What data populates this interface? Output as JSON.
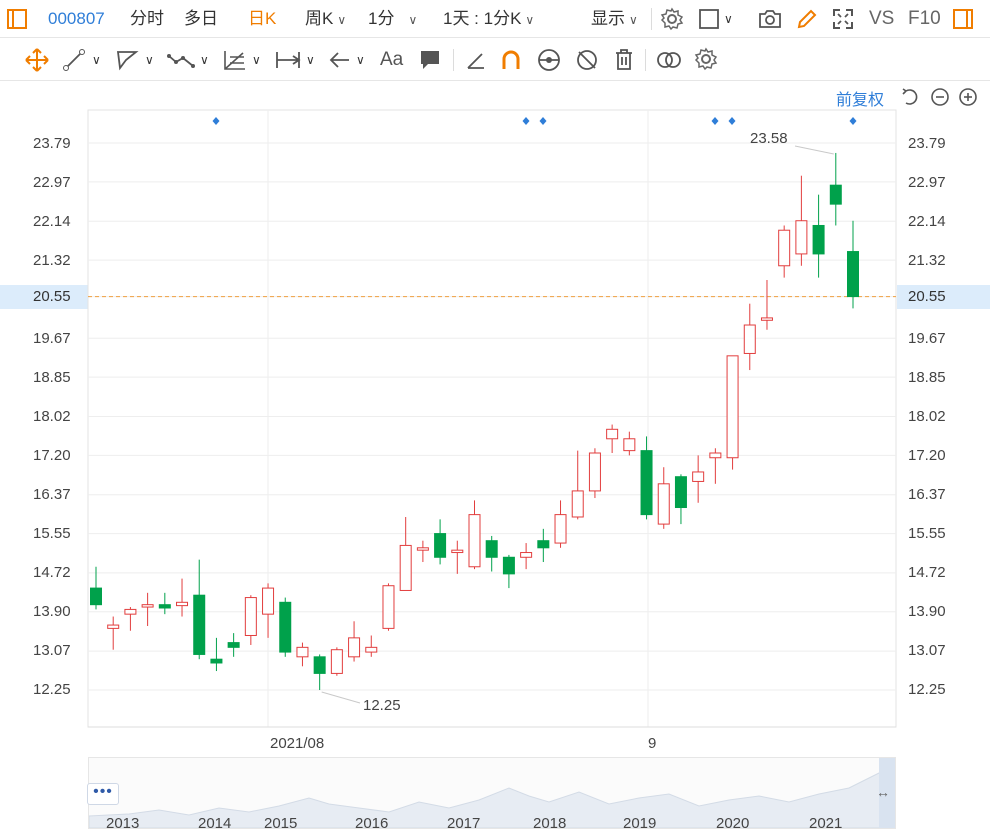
{
  "toolbar": {
    "code": "000807",
    "tabs": [
      "分时",
      "多日",
      "日K",
      "周K",
      "1分",
      "1天 : 1分K"
    ],
    "display_label": "显示",
    "vs_label": "VS",
    "f10_label": "F10"
  },
  "chart_toolbar": {
    "font_label": "Aa"
  },
  "chart": {
    "adjust_label": "前复权",
    "high_label": "23.58",
    "low_label": "12.25",
    "current_price": "20.55",
    "y_ticks": [
      "23.79",
      "22.97",
      "22.14",
      "21.32",
      "20.55",
      "19.67",
      "18.85",
      "18.02",
      "17.20",
      "16.37",
      "15.55",
      "14.72",
      "13.90",
      "13.07",
      "12.25"
    ],
    "x_labels": [
      "2021/08",
      "9"
    ],
    "navigator_years": [
      "2013",
      "2014",
      "2015",
      "2016",
      "2017",
      "2018",
      "2019",
      "2020",
      "2021"
    ],
    "colors": {
      "up": "#e23d3d",
      "down": "#00a14b",
      "accent": "#2f7ed8",
      "orange": "#f07d00"
    }
  },
  "chart_data": {
    "type": "candlestick",
    "ylim": [
      12.25,
      23.79
    ],
    "candles": [
      {
        "o": 14.4,
        "c": 14.05,
        "h": 14.85,
        "l": 13.95
      },
      {
        "o": 13.55,
        "c": 13.62,
        "h": 13.8,
        "l": 13.1
      },
      {
        "o": 13.85,
        "c": 13.95,
        "h": 14.0,
        "l": 13.5
      },
      {
        "o": 14.0,
        "c": 14.05,
        "h": 14.3,
        "l": 13.6
      },
      {
        "o": 14.05,
        "c": 13.98,
        "h": 14.3,
        "l": 13.85
      },
      {
        "o": 14.03,
        "c": 14.1,
        "h": 14.6,
        "l": 13.8
      },
      {
        "o": 14.25,
        "c": 13.0,
        "h": 15.0,
        "l": 12.9
      },
      {
        "o": 12.9,
        "c": 12.82,
        "h": 13.35,
        "l": 12.65
      },
      {
        "o": 13.25,
        "c": 13.15,
        "h": 13.45,
        "l": 12.95
      },
      {
        "o": 13.4,
        "c": 14.2,
        "h": 14.25,
        "l": 13.2
      },
      {
        "o": 13.85,
        "c": 14.4,
        "h": 14.5,
        "l": 13.35
      },
      {
        "o": 14.1,
        "c": 13.05,
        "h": 14.2,
        "l": 12.95
      },
      {
        "o": 12.95,
        "c": 13.15,
        "h": 13.25,
        "l": 12.75
      },
      {
        "o": 12.95,
        "c": 12.6,
        "h": 13.0,
        "l": 12.25
      },
      {
        "o": 12.6,
        "c": 13.1,
        "h": 13.15,
        "l": 12.55
      },
      {
        "o": 12.95,
        "c": 13.35,
        "h": 13.7,
        "l": 12.85
      },
      {
        "o": 13.05,
        "c": 13.15,
        "h": 13.4,
        "l": 12.95
      },
      {
        "o": 13.55,
        "c": 14.45,
        "h": 14.5,
        "l": 13.5
      },
      {
        "o": 14.35,
        "c": 15.3,
        "h": 15.9,
        "l": 14.35
      },
      {
        "o": 15.2,
        "c": 15.25,
        "h": 15.4,
        "l": 14.95
      },
      {
        "o": 15.55,
        "c": 15.05,
        "h": 15.85,
        "l": 14.9
      },
      {
        "o": 15.15,
        "c": 15.2,
        "h": 15.4,
        "l": 14.7
      },
      {
        "o": 14.85,
        "c": 15.95,
        "h": 16.25,
        "l": 14.8
      },
      {
        "o": 15.4,
        "c": 15.05,
        "h": 15.5,
        "l": 14.75
      },
      {
        "o": 15.05,
        "c": 14.7,
        "h": 15.1,
        "l": 14.4
      },
      {
        "o": 15.05,
        "c": 15.15,
        "h": 15.35,
        "l": 14.8
      },
      {
        "o": 15.4,
        "c": 15.25,
        "h": 15.65,
        "l": 14.95
      },
      {
        "o": 15.35,
        "c": 15.95,
        "h": 16.25,
        "l": 15.25
      },
      {
        "o": 15.9,
        "c": 16.45,
        "h": 17.3,
        "l": 15.85
      },
      {
        "o": 16.45,
        "c": 17.25,
        "h": 17.35,
        "l": 16.3
      },
      {
        "o": 17.55,
        "c": 17.75,
        "h": 17.85,
        "l": 17.25
      },
      {
        "o": 17.3,
        "c": 17.55,
        "h": 17.7,
        "l": 17.2
      },
      {
        "o": 17.3,
        "c": 15.95,
        "h": 17.6,
        "l": 15.85
      },
      {
        "o": 15.75,
        "c": 16.6,
        "h": 16.95,
        "l": 15.65
      },
      {
        "o": 16.75,
        "c": 16.1,
        "h": 16.8,
        "l": 15.75
      },
      {
        "o": 16.65,
        "c": 16.85,
        "h": 17.2,
        "l": 16.2
      },
      {
        "o": 17.15,
        "c": 17.25,
        "h": 17.35,
        "l": 16.6
      },
      {
        "o": 17.15,
        "c": 19.3,
        "h": 19.3,
        "l": 16.9
      },
      {
        "o": 19.35,
        "c": 19.95,
        "h": 20.4,
        "l": 19.0
      },
      {
        "o": 20.05,
        "c": 20.1,
        "h": 20.9,
        "l": 19.85
      },
      {
        "o": 21.2,
        "c": 21.95,
        "h": 22.05,
        "l": 20.95
      },
      {
        "o": 21.45,
        "c": 22.15,
        "h": 23.1,
        "l": 21.2
      },
      {
        "o": 22.05,
        "c": 21.45,
        "h": 22.7,
        "l": 20.95
      },
      {
        "o": 22.9,
        "c": 22.5,
        "h": 23.58,
        "l": 22.05
      },
      {
        "o": 21.5,
        "c": 20.55,
        "h": 22.15,
        "l": 20.3
      }
    ]
  }
}
